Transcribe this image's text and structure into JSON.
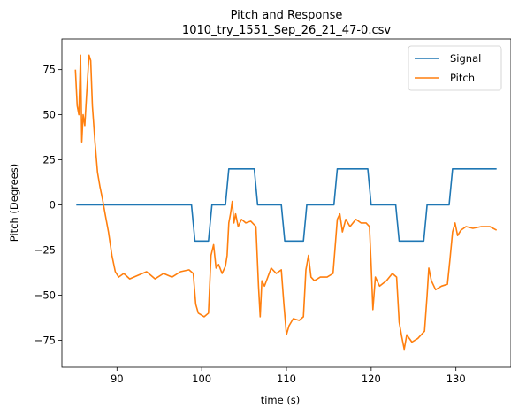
{
  "chart_data": {
    "type": "line",
    "title": "Pitch and Response",
    "subtitle": "1010_try_1551_Sep_26_21_47-0.csv",
    "xlabel": "time (s)",
    "ylabel": "Pitch (Degrees)",
    "xlim": [
      83.5,
      136.5
    ],
    "ylim": [
      -90,
      92
    ],
    "x_ticks": [
      90,
      100,
      110,
      120,
      130
    ],
    "y_ticks": [
      -75,
      -50,
      -25,
      0,
      25,
      50,
      75
    ],
    "grid": false,
    "legend_position": "top-right",
    "series": [
      {
        "name": "Signal",
        "color": "#1f77b4",
        "points": [
          [
            85.2,
            0
          ],
          [
            98.8,
            0
          ],
          [
            99.2,
            -20
          ],
          [
            100.8,
            -20
          ],
          [
            101.2,
            0
          ],
          [
            102.8,
            0
          ],
          [
            103.2,
            20
          ],
          [
            106.2,
            20
          ],
          [
            106.6,
            0
          ],
          [
            109.4,
            0
          ],
          [
            109.8,
            -20
          ],
          [
            112.0,
            -20
          ],
          [
            112.4,
            0
          ],
          [
            115.6,
            0
          ],
          [
            116.0,
            20
          ],
          [
            119.6,
            20
          ],
          [
            120.0,
            0
          ],
          [
            122.9,
            0
          ],
          [
            123.3,
            -20
          ],
          [
            126.2,
            -20
          ],
          [
            126.6,
            0
          ],
          [
            129.2,
            0
          ],
          [
            129.6,
            20
          ],
          [
            134.8,
            20
          ]
        ]
      },
      {
        "name": "Pitch",
        "color": "#ff7f0e",
        "points": [
          [
            85.1,
            75
          ],
          [
            85.3,
            55
          ],
          [
            85.5,
            50
          ],
          [
            85.7,
            83
          ],
          [
            85.85,
            35
          ],
          [
            86.0,
            50
          ],
          [
            86.2,
            44
          ],
          [
            86.4,
            60
          ],
          [
            86.7,
            83
          ],
          [
            86.9,
            80
          ],
          [
            87.1,
            55
          ],
          [
            87.4,
            35
          ],
          [
            87.7,
            18
          ],
          [
            88.0,
            10
          ],
          [
            88.3,
            3
          ],
          [
            88.6,
            -5
          ],
          [
            89.0,
            -15
          ],
          [
            89.4,
            -28
          ],
          [
            89.8,
            -37
          ],
          [
            90.2,
            -40
          ],
          [
            90.8,
            -38
          ],
          [
            91.5,
            -41
          ],
          [
            92.5,
            -39
          ],
          [
            93.5,
            -37
          ],
          [
            94.5,
            -41
          ],
          [
            95.5,
            -38
          ],
          [
            96.5,
            -40
          ],
          [
            97.5,
            -37
          ],
          [
            98.5,
            -36
          ],
          [
            99.0,
            -38
          ],
          [
            99.3,
            -55
          ],
          [
            99.6,
            -60
          ],
          [
            100.3,
            -62
          ],
          [
            100.8,
            -60
          ],
          [
            101.1,
            -28
          ],
          [
            101.4,
            -22
          ],
          [
            101.7,
            -35
          ],
          [
            102.0,
            -33
          ],
          [
            102.4,
            -38
          ],
          [
            102.8,
            -34
          ],
          [
            103.0,
            -28
          ],
          [
            103.2,
            -10
          ],
          [
            103.4,
            -5
          ],
          [
            103.6,
            2
          ],
          [
            103.8,
            -10
          ],
          [
            104.0,
            -5
          ],
          [
            104.3,
            -12
          ],
          [
            104.7,
            -8
          ],
          [
            105.2,
            -10
          ],
          [
            105.8,
            -9
          ],
          [
            106.4,
            -12
          ],
          [
            106.7,
            -45
          ],
          [
            106.9,
            -62
          ],
          [
            107.1,
            -42
          ],
          [
            107.4,
            -45
          ],
          [
            107.8,
            -40
          ],
          [
            108.2,
            -35
          ],
          [
            108.8,
            -38
          ],
          [
            109.4,
            -36
          ],
          [
            109.7,
            -55
          ],
          [
            110.0,
            -72
          ],
          [
            110.3,
            -67
          ],
          [
            110.8,
            -63
          ],
          [
            111.5,
            -64
          ],
          [
            112.0,
            -62
          ],
          [
            112.3,
            -36
          ],
          [
            112.6,
            -28
          ],
          [
            112.9,
            -40
          ],
          [
            113.3,
            -42
          ],
          [
            114.0,
            -40
          ],
          [
            114.8,
            -40
          ],
          [
            115.5,
            -38
          ],
          [
            115.8,
            -20
          ],
          [
            116.0,
            -8
          ],
          [
            116.3,
            -5
          ],
          [
            116.6,
            -15
          ],
          [
            117.0,
            -8
          ],
          [
            117.5,
            -12
          ],
          [
            118.2,
            -8
          ],
          [
            118.8,
            -10
          ],
          [
            119.4,
            -10
          ],
          [
            119.8,
            -12
          ],
          [
            120.0,
            -33
          ],
          [
            120.2,
            -58
          ],
          [
            120.5,
            -40
          ],
          [
            121.0,
            -45
          ],
          [
            121.8,
            -42
          ],
          [
            122.5,
            -38
          ],
          [
            123.0,
            -40
          ],
          [
            123.3,
            -65
          ],
          [
            123.6,
            -73
          ],
          [
            123.9,
            -80
          ],
          [
            124.2,
            -72
          ],
          [
            124.8,
            -76
          ],
          [
            125.5,
            -74
          ],
          [
            126.3,
            -70
          ],
          [
            126.6,
            -50
          ],
          [
            126.8,
            -35
          ],
          [
            127.1,
            -42
          ],
          [
            127.6,
            -47
          ],
          [
            128.3,
            -45
          ],
          [
            129.0,
            -44
          ],
          [
            129.3,
            -30
          ],
          [
            129.6,
            -15
          ],
          [
            129.9,
            -10
          ],
          [
            130.2,
            -17
          ],
          [
            130.6,
            -14
          ],
          [
            131.2,
            -12
          ],
          [
            132.0,
            -13
          ],
          [
            133.0,
            -12
          ],
          [
            134.0,
            -12
          ],
          [
            134.8,
            -14
          ]
        ]
      }
    ]
  }
}
